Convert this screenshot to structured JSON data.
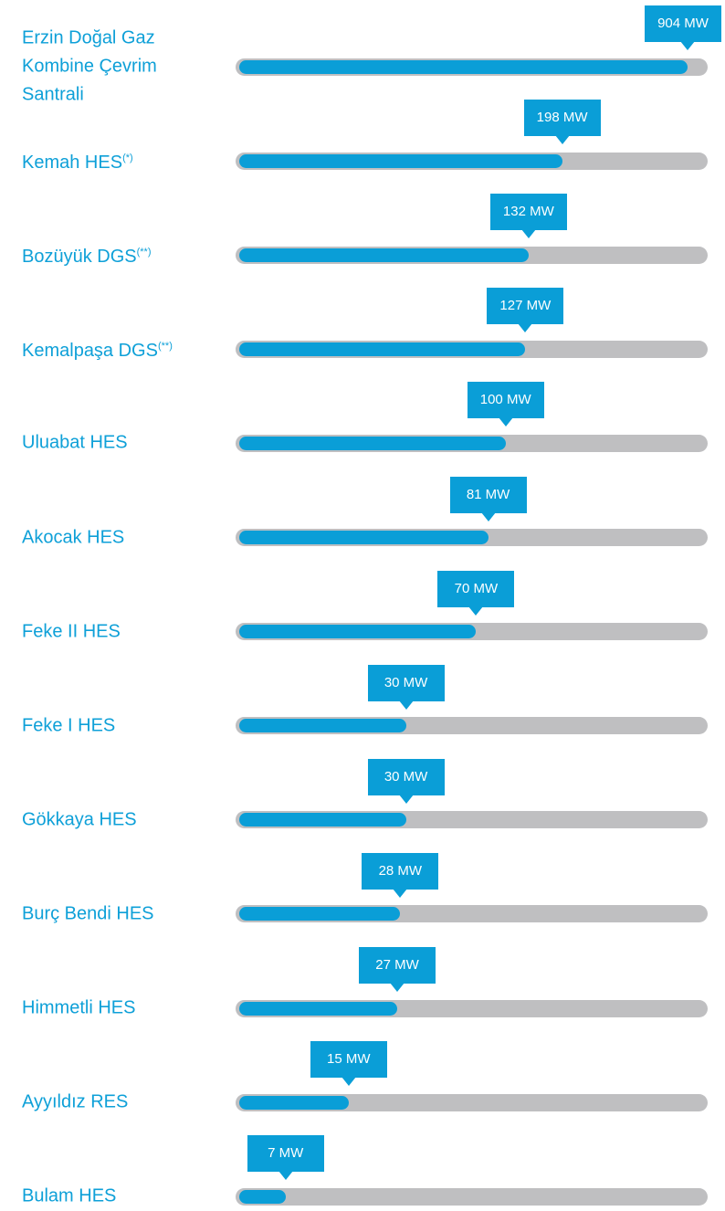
{
  "chart_data": {
    "type": "bar",
    "orientation": "horizontal",
    "categories": [
      "Erzin Doğal Gaz Kombine Çevrim Santrali",
      "Kemah HES",
      "Bozüyük DGS",
      "Kemalpaşa DGS",
      "Uluabat HES",
      "Akocak HES",
      "Feke II HES",
      "Feke I HES",
      "Gökkaya HES",
      "Burç Bendi HES",
      "Himmetli HES",
      "Ayyıldız RES",
      "Bulam HES"
    ],
    "category_notes": [
      null,
      "(*)",
      "(**)",
      "(**)",
      null,
      null,
      null,
      null,
      null,
      null,
      null,
      null,
      null
    ],
    "values": [
      904,
      198,
      132,
      127,
      100,
      81,
      70,
      30,
      30,
      28,
      27,
      15,
      7
    ],
    "value_labels": [
      "904 MW",
      "198 MW",
      "132 MW",
      "127 MW",
      "100 MW",
      "81 MW",
      "70 MW",
      "30 MW",
      "30 MW",
      "28 MW",
      "27 MW",
      "15 MW",
      "7 MW"
    ],
    "xlim": [
      4,
      1100
    ],
    "log_scale": true,
    "color": "#0a9ed7",
    "track_color": "#bfbfc1",
    "label_color": "#0ea0d8"
  }
}
